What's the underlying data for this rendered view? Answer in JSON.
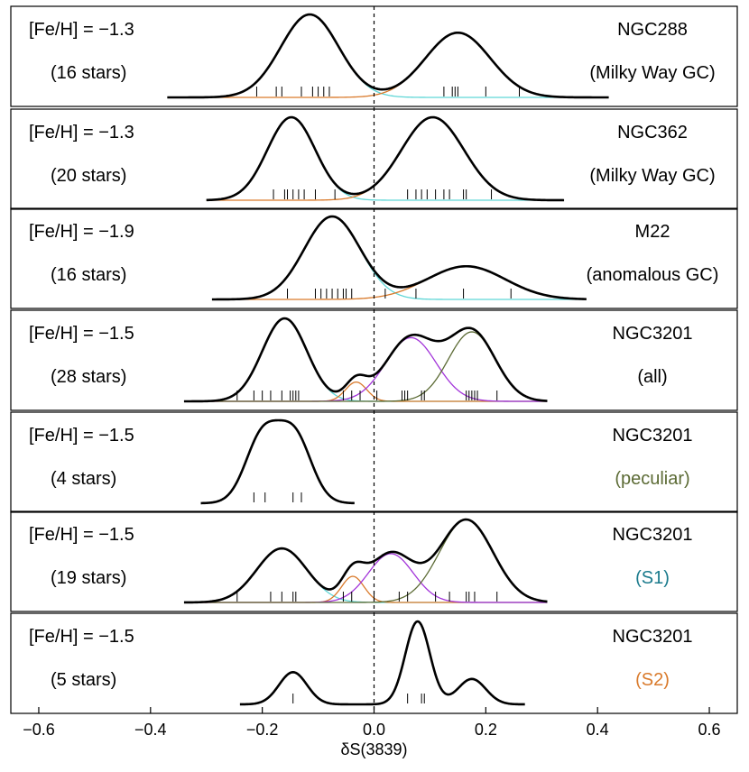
{
  "chart_data": {
    "type": "line",
    "xlabel": "δS(3839)",
    "xlim": [
      -0.65,
      0.65
    ],
    "xticks": [
      -0.6,
      -0.4,
      -0.2,
      0.0,
      0.2,
      0.4,
      0.6
    ],
    "xtick_labels": [
      "−0.6",
      "−0.4",
      "−0.2",
      "0.0",
      "0.2",
      "0.4",
      "0.6"
    ],
    "reference_line_x": 0.0,
    "colors": {
      "total": "#000000",
      "cyan": "#5fd6d6",
      "orange": "#d97a2b",
      "purple": "#a233d9",
      "olive": "#5c6b35",
      "teal": "#1a7a8c"
    },
    "panels": [
      {
        "metallicity": "[Fe/H] = −1.3",
        "stars": "(16 stars)",
        "name": "NGC288",
        "subtitle": "(Milky Way GC)",
        "subtitle_color": "#000000",
        "range": [
          -0.37,
          0.42
        ],
        "components": [
          {
            "name": "cyan",
            "mu": -0.115,
            "sigma": 0.052,
            "amp": 1.0
          },
          {
            "name": "orange",
            "mu": 0.15,
            "sigma": 0.058,
            "amp": 0.78
          }
        ],
        "ticks": [
          -0.21,
          -0.175,
          -0.165,
          -0.13,
          -0.11,
          -0.1,
          -0.09,
          -0.08,
          0.125,
          0.14,
          0.145,
          0.15,
          0.2,
          0.26
        ]
      },
      {
        "metallicity": "[Fe/H] = −1.3",
        "stars": "(20 stars)",
        "name": "NGC362",
        "subtitle": "(Milky Way GC)",
        "subtitle_color": "#000000",
        "range": [
          -0.3,
          0.34
        ],
        "components": [
          {
            "name": "cyan",
            "mu": -0.148,
            "sigma": 0.043,
            "amp": 1.0
          },
          {
            "name": "orange",
            "mu": 0.105,
            "sigma": 0.056,
            "amp": 1.0
          }
        ],
        "ticks": [
          -0.18,
          -0.16,
          -0.155,
          -0.145,
          -0.135,
          -0.125,
          -0.105,
          -0.07,
          0.06,
          0.075,
          0.085,
          0.095,
          0.11,
          0.125,
          0.135,
          0.16,
          0.165,
          0.21
        ]
      },
      {
        "metallicity": "[Fe/H] = −1.9",
        "stars": "(16 stars)",
        "name": "M22",
        "subtitle": "(anomalous GC)",
        "subtitle_color": "#000000",
        "range": [
          -0.29,
          0.38
        ],
        "components": [
          {
            "name": "cyan",
            "mu": -0.075,
            "sigma": 0.05,
            "amp": 1.0
          },
          {
            "name": "orange",
            "mu": 0.165,
            "sigma": 0.07,
            "amp": 0.4
          }
        ],
        "ticks": [
          -0.155,
          -0.105,
          -0.095,
          -0.085,
          -0.075,
          -0.065,
          -0.055,
          -0.05,
          -0.04,
          0.02,
          0.075,
          0.16,
          0.245
        ]
      },
      {
        "metallicity": "[Fe/H] = −1.5",
        "stars": "(28 stars)",
        "name": "NGC3201",
        "subtitle": "(all)",
        "subtitle_color": "#000000",
        "range": [
          -0.34,
          0.31
        ],
        "components": [
          {
            "name": "cyan",
            "mu": -0.16,
            "sigma": 0.04,
            "amp": 0.86
          },
          {
            "name": "orange",
            "mu": -0.032,
            "sigma": 0.019,
            "amp": 0.2
          },
          {
            "name": "purple",
            "mu": 0.066,
            "sigma": 0.045,
            "amp": 0.66
          },
          {
            "name": "olive",
            "mu": 0.175,
            "sigma": 0.042,
            "amp": 0.72
          }
        ],
        "ticks": [
          -0.245,
          -0.215,
          -0.2,
          -0.185,
          -0.165,
          -0.15,
          -0.145,
          -0.14,
          -0.135,
          -0.055,
          -0.04,
          -0.025,
          0.005,
          0.05,
          0.055,
          0.06,
          0.085,
          0.09,
          0.165,
          0.17,
          0.175,
          0.18,
          0.185,
          0.22
        ]
      },
      {
        "metallicity": "[Fe/H] = −1.5",
        "stars": "(4 stars)",
        "name": "NGC3201",
        "subtitle": "(peculiar)",
        "subtitle_color": "#5c6b35",
        "range": [
          -0.31,
          -0.035
        ],
        "components": [
          {
            "name": "total",
            "mu": -0.2,
            "sigma": 0.03,
            "amp": 0.8
          },
          {
            "name": "total",
            "mu": -0.142,
            "sigma": 0.03,
            "amp": 0.8
          }
        ],
        "ticks": [
          -0.215,
          -0.195,
          -0.145,
          -0.13
        ]
      },
      {
        "metallicity": "[Fe/H] = −1.5",
        "stars": "(19 stars)",
        "name": "NGC3201",
        "subtitle": "(S1)",
        "subtitle_color": "#1a7a8c",
        "range": [
          -0.34,
          0.31
        ],
        "components": [
          {
            "name": "cyan",
            "mu": -0.165,
            "sigma": 0.045,
            "amp": 0.62
          },
          {
            "name": "orange",
            "mu": -0.038,
            "sigma": 0.02,
            "amp": 0.3
          },
          {
            "name": "purple",
            "mu": 0.03,
            "sigma": 0.04,
            "amp": 0.56
          },
          {
            "name": "olive",
            "mu": 0.165,
            "sigma": 0.048,
            "amp": 0.95
          }
        ],
        "ticks": [
          -0.245,
          -0.185,
          -0.165,
          -0.145,
          -0.14,
          -0.055,
          -0.04,
          0.0,
          0.045,
          0.06,
          0.11,
          0.135,
          0.165,
          0.17,
          0.18,
          0.22
        ]
      },
      {
        "metallicity": "[Fe/H] = −1.5",
        "stars": "(5 stars)",
        "name": "NGC3201",
        "subtitle": "(S2)",
        "subtitle_color": "#d97a2b",
        "range": [
          -0.24,
          0.27
        ],
        "components": [
          {
            "name": "total",
            "mu": -0.145,
            "sigma": 0.025,
            "amp": 0.38
          },
          {
            "name": "total",
            "mu": 0.078,
            "sigma": 0.022,
            "amp": 0.98
          },
          {
            "name": "total",
            "mu": 0.175,
            "sigma": 0.025,
            "amp": 0.3
          }
        ],
        "ticks": [
          -0.145,
          0.06,
          0.085,
          0.09
        ]
      }
    ]
  }
}
